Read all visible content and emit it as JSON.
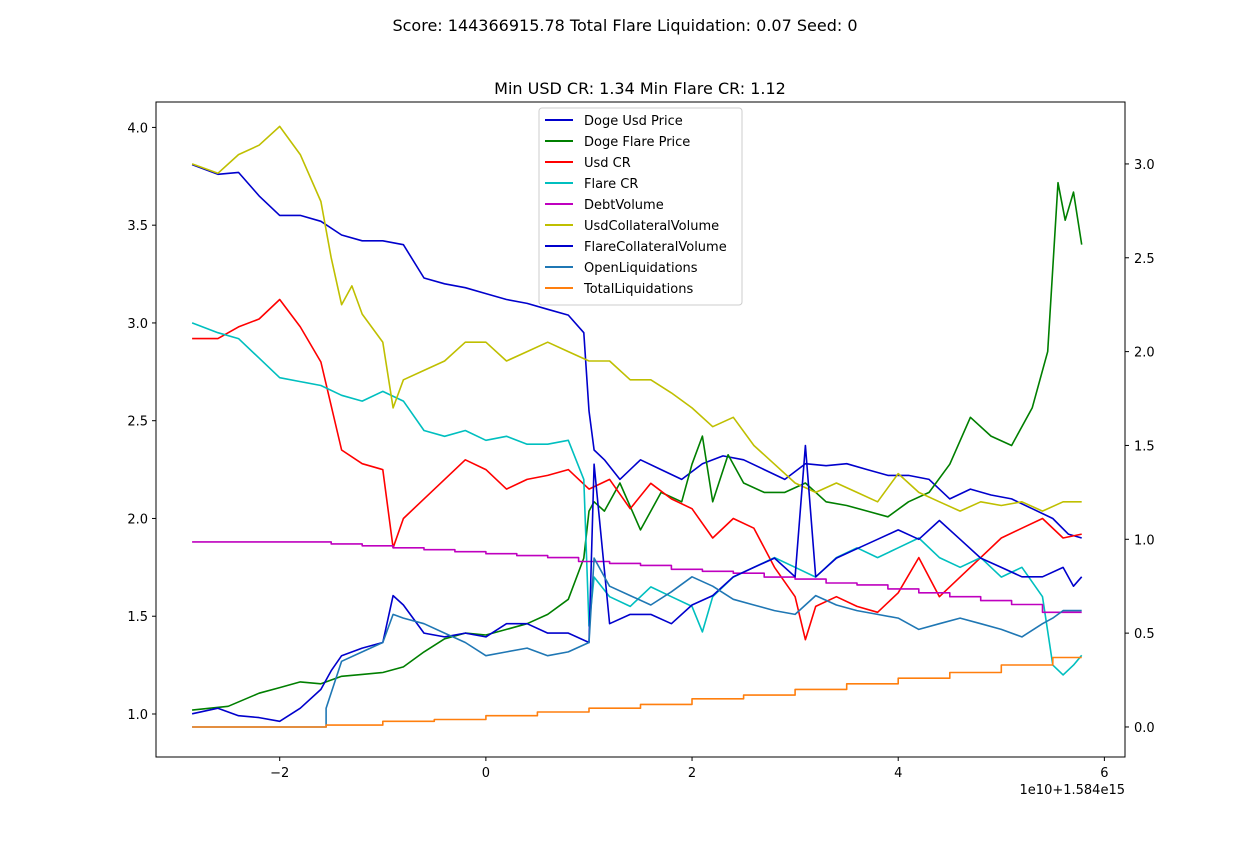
{
  "chart_data": {
    "type": "line",
    "suptitle": "Score: 144366915.78 Total Flare Liquidation: 0.07 Seed: 0",
    "title": "Min USD CR: 1.34 Min Flare CR: 1.12",
    "x_offset_label": "1e10+1.584e15",
    "x_ticks": [
      "−2",
      "0",
      "2",
      "4",
      "6"
    ],
    "x_tick_values": [
      -2,
      0,
      2,
      4,
      6
    ],
    "xlim": [
      -3.2,
      6.2
    ],
    "left_axis": {
      "ylim": [
        0.78,
        4.13
      ],
      "ticks": [
        "1.0",
        "1.5",
        "2.0",
        "2.5",
        "3.0",
        "3.5",
        "4.0"
      ],
      "tick_values": [
        1.0,
        1.5,
        2.0,
        2.5,
        3.0,
        3.5,
        4.0
      ]
    },
    "right_axis": {
      "ylim": [
        -0.16,
        3.33
      ],
      "ticks": [
        "0.0",
        "0.5",
        "1.0",
        "1.5",
        "2.0",
        "2.5",
        "3.0"
      ],
      "tick_values": [
        0.0,
        0.5,
        1.0,
        1.5,
        2.0,
        2.5,
        3.0
      ]
    },
    "legend_position": "upper-center",
    "grid": false,
    "series": [
      {
        "name": "Doge Usd Price",
        "color": "#0000cc",
        "axis": "left",
        "x": [
          -2.85,
          -2.6,
          -2.4,
          -2.2,
          -2.0,
          -1.8,
          -1.6,
          -1.4,
          -1.2,
          -1.0,
          -0.8,
          -0.6,
          -0.4,
          -0.2,
          0.0,
          0.2,
          0.4,
          0.6,
          0.8,
          0.95,
          1.0,
          1.05,
          1.15,
          1.3,
          1.5,
          1.7,
          1.9,
          2.1,
          2.3,
          2.5,
          2.7,
          2.9,
          3.1,
          3.3,
          3.5,
          3.7,
          3.9,
          4.1,
          4.3,
          4.5,
          4.7,
          4.9,
          5.1,
          5.3,
          5.5,
          5.65,
          5.78
        ],
        "y": [
          3.81,
          3.76,
          3.77,
          3.65,
          3.55,
          3.55,
          3.52,
          3.45,
          3.42,
          3.42,
          3.4,
          3.23,
          3.2,
          3.18,
          3.15,
          3.12,
          3.1,
          3.07,
          3.04,
          2.95,
          2.55,
          2.35,
          2.3,
          2.2,
          2.3,
          2.25,
          2.2,
          2.28,
          2.32,
          2.3,
          2.25,
          2.2,
          2.28,
          2.27,
          2.28,
          2.25,
          2.22,
          2.22,
          2.2,
          2.1,
          2.15,
          2.12,
          2.1,
          2.05,
          2.0,
          1.92,
          1.9
        ]
      },
      {
        "name": "Doge Flare Price",
        "color": "#007f00",
        "axis": "right",
        "x": [
          -2.85,
          -2.5,
          -2.2,
          -2.0,
          -1.8,
          -1.6,
          -1.4,
          -1.2,
          -1.0,
          -0.8,
          -0.6,
          -0.4,
          -0.2,
          0.0,
          0.2,
          0.4,
          0.6,
          0.8,
          0.95,
          1.0,
          1.05,
          1.15,
          1.3,
          1.5,
          1.7,
          1.9,
          2.0,
          2.1,
          2.2,
          2.35,
          2.5,
          2.7,
          2.9,
          3.1,
          3.3,
          3.5,
          3.7,
          3.9,
          4.1,
          4.3,
          4.5,
          4.7,
          4.9,
          5.1,
          5.3,
          5.45,
          5.55,
          5.62,
          5.7,
          5.78
        ],
        "y": [
          0.09,
          0.11,
          0.18,
          0.21,
          0.24,
          0.23,
          0.27,
          0.28,
          0.29,
          0.32,
          0.4,
          0.47,
          0.5,
          0.49,
          0.52,
          0.55,
          0.6,
          0.68,
          0.9,
          1.15,
          1.2,
          1.15,
          1.3,
          1.05,
          1.25,
          1.2,
          1.4,
          1.55,
          1.2,
          1.45,
          1.3,
          1.25,
          1.25,
          1.3,
          1.2,
          1.18,
          1.15,
          1.12,
          1.2,
          1.25,
          1.4,
          1.65,
          1.55,
          1.5,
          1.7,
          2.0,
          2.9,
          2.7,
          2.85,
          2.57
        ]
      },
      {
        "name": "Usd CR",
        "color": "#ff0000",
        "axis": "left",
        "x": [
          -2.85,
          -2.6,
          -2.4,
          -2.2,
          -2.0,
          -1.8,
          -1.6,
          -1.4,
          -1.2,
          -1.0,
          -0.9,
          -0.8,
          -0.6,
          -0.4,
          -0.2,
          0.0,
          0.2,
          0.4,
          0.6,
          0.8,
          1.0,
          1.2,
          1.4,
          1.6,
          1.8,
          2.0,
          2.2,
          2.4,
          2.6,
          2.8,
          3.0,
          3.1,
          3.2,
          3.4,
          3.6,
          3.8,
          4.0,
          4.2,
          4.4,
          4.6,
          4.8,
          5.0,
          5.2,
          5.4,
          5.6,
          5.78
        ],
        "y": [
          2.92,
          2.92,
          2.98,
          3.02,
          3.12,
          2.98,
          2.8,
          2.35,
          2.28,
          2.25,
          1.85,
          2.0,
          2.1,
          2.2,
          2.3,
          2.25,
          2.15,
          2.2,
          2.22,
          2.25,
          2.15,
          2.2,
          2.05,
          2.18,
          2.1,
          2.05,
          1.9,
          2.0,
          1.95,
          1.75,
          1.6,
          1.38,
          1.55,
          1.6,
          1.55,
          1.52,
          1.62,
          1.8,
          1.6,
          1.7,
          1.8,
          1.9,
          1.95,
          2.0,
          1.9,
          1.92
        ]
      },
      {
        "name": "Flare CR",
        "color": "#00bfbf",
        "axis": "left",
        "x": [
          -2.85,
          -2.6,
          -2.4,
          -2.2,
          -2.0,
          -1.8,
          -1.6,
          -1.4,
          -1.2,
          -1.0,
          -0.8,
          -0.6,
          -0.4,
          -0.2,
          0.0,
          0.2,
          0.4,
          0.6,
          0.8,
          0.95,
          1.0,
          1.05,
          1.2,
          1.4,
          1.6,
          1.8,
          2.0,
          2.1,
          2.2,
          2.4,
          2.6,
          2.8,
          3.0,
          3.2,
          3.4,
          3.6,
          3.8,
          4.0,
          4.2,
          4.4,
          4.6,
          4.8,
          5.0,
          5.2,
          5.4,
          5.5,
          5.6,
          5.7,
          5.78
        ],
        "y": [
          3.0,
          2.95,
          2.92,
          2.82,
          2.72,
          2.7,
          2.68,
          2.63,
          2.6,
          2.65,
          2.6,
          2.45,
          2.42,
          2.45,
          2.4,
          2.42,
          2.38,
          2.38,
          2.4,
          2.2,
          1.45,
          1.7,
          1.6,
          1.55,
          1.65,
          1.6,
          1.55,
          1.42,
          1.6,
          1.7,
          1.75,
          1.8,
          1.75,
          1.7,
          1.8,
          1.85,
          1.8,
          1.85,
          1.9,
          1.8,
          1.75,
          1.8,
          1.7,
          1.75,
          1.6,
          1.25,
          1.2,
          1.25,
          1.3
        ]
      },
      {
        "name": "DebtVolume",
        "color": "#bf00bf",
        "axis": "left",
        "x": [
          -2.85,
          -1.5,
          -1.5,
          -1.2,
          -1.2,
          -0.9,
          -0.9,
          -0.6,
          -0.6,
          -0.3,
          -0.3,
          0.0,
          0.0,
          0.3,
          0.3,
          0.6,
          0.6,
          0.9,
          0.9,
          1.2,
          1.2,
          1.5,
          1.5,
          1.8,
          1.8,
          2.1,
          2.1,
          2.4,
          2.4,
          2.7,
          2.7,
          3.0,
          3.0,
          3.3,
          3.3,
          3.6,
          3.6,
          3.9,
          3.9,
          4.2,
          4.2,
          4.5,
          4.5,
          4.8,
          4.8,
          5.1,
          5.1,
          5.4,
          5.4,
          5.78
        ],
        "y": [
          1.88,
          1.88,
          1.87,
          1.87,
          1.86,
          1.86,
          1.85,
          1.85,
          1.84,
          1.84,
          1.83,
          1.83,
          1.82,
          1.82,
          1.81,
          1.81,
          1.8,
          1.8,
          1.78,
          1.78,
          1.77,
          1.77,
          1.76,
          1.76,
          1.74,
          1.74,
          1.73,
          1.73,
          1.72,
          1.72,
          1.7,
          1.7,
          1.69,
          1.69,
          1.67,
          1.67,
          1.66,
          1.66,
          1.64,
          1.64,
          1.62,
          1.62,
          1.6,
          1.6,
          1.58,
          1.58,
          1.56,
          1.56,
          1.52,
          1.52
        ]
      },
      {
        "name": "UsdCollateralVolume",
        "color": "#bfbf00",
        "axis": "right",
        "x": [
          -2.85,
          -2.6,
          -2.4,
          -2.2,
          -2.0,
          -1.8,
          -1.6,
          -1.5,
          -1.4,
          -1.3,
          -1.2,
          -1.0,
          -0.9,
          -0.8,
          -0.6,
          -0.4,
          -0.2,
          0.0,
          0.2,
          0.4,
          0.6,
          0.8,
          1.0,
          1.2,
          1.4,
          1.6,
          1.8,
          2.0,
          2.2,
          2.4,
          2.6,
          2.8,
          3.0,
          3.2,
          3.4,
          3.6,
          3.8,
          4.0,
          4.2,
          4.4,
          4.6,
          4.8,
          5.0,
          5.2,
          5.4,
          5.6,
          5.78
        ],
        "y": [
          3.0,
          2.95,
          3.05,
          3.1,
          3.2,
          3.05,
          2.8,
          2.5,
          2.25,
          2.35,
          2.2,
          2.05,
          1.7,
          1.85,
          1.9,
          1.95,
          2.05,
          2.05,
          1.95,
          2.0,
          2.05,
          2.0,
          1.95,
          1.95,
          1.85,
          1.85,
          1.78,
          1.7,
          1.6,
          1.65,
          1.5,
          1.4,
          1.3,
          1.25,
          1.3,
          1.25,
          1.2,
          1.35,
          1.25,
          1.2,
          1.15,
          1.2,
          1.18,
          1.2,
          1.15,
          1.2,
          1.2
        ]
      },
      {
        "name": "FlareCollateralVolume",
        "color": "#0000cc",
        "axis": "right",
        "x": [
          -2.85,
          -2.6,
          -2.4,
          -2.2,
          -2.0,
          -1.8,
          -1.6,
          -1.5,
          -1.4,
          -1.2,
          -1.0,
          -0.9,
          -0.8,
          -0.6,
          -0.4,
          -0.2,
          0.0,
          0.2,
          0.4,
          0.6,
          0.8,
          1.0,
          1.05,
          1.2,
          1.4,
          1.6,
          1.8,
          2.0,
          2.2,
          2.4,
          2.6,
          2.8,
          3.0,
          3.1,
          3.2,
          3.4,
          3.6,
          3.8,
          4.0,
          4.2,
          4.4,
          4.6,
          4.8,
          5.0,
          5.2,
          5.4,
          5.6,
          5.7,
          5.78
        ],
        "y": [
          0.07,
          0.1,
          0.06,
          0.05,
          0.03,
          0.1,
          0.2,
          0.3,
          0.38,
          0.42,
          0.45,
          0.7,
          0.65,
          0.5,
          0.48,
          0.5,
          0.48,
          0.55,
          0.55,
          0.5,
          0.5,
          0.45,
          1.4,
          0.55,
          0.6,
          0.6,
          0.55,
          0.65,
          0.7,
          0.8,
          0.85,
          0.9,
          0.8,
          1.5,
          0.8,
          0.9,
          0.95,
          1.0,
          1.05,
          1.0,
          1.1,
          1.0,
          0.9,
          0.85,
          0.8,
          0.8,
          0.85,
          0.75,
          0.8
        ]
      },
      {
        "name": "OpenLiquidations",
        "color": "#1f77b4",
        "axis": "right",
        "x": [
          -2.85,
          -1.55,
          -1.55,
          -1.4,
          -1.2,
          -1.0,
          -0.9,
          -0.8,
          -0.6,
          -0.4,
          -0.2,
          0.0,
          0.2,
          0.4,
          0.6,
          0.8,
          1.0,
          1.05,
          1.2,
          1.4,
          1.6,
          1.8,
          2.0,
          2.2,
          2.4,
          2.6,
          2.8,
          3.0,
          3.2,
          3.4,
          3.6,
          3.8,
          4.0,
          4.2,
          4.4,
          4.6,
          4.8,
          5.0,
          5.2,
          5.4,
          5.5,
          5.6,
          5.78
        ],
        "y": [
          0.0,
          0.0,
          0.1,
          0.35,
          0.4,
          0.45,
          0.6,
          0.58,
          0.55,
          0.5,
          0.45,
          0.38,
          0.4,
          0.42,
          0.38,
          0.4,
          0.45,
          0.9,
          0.75,
          0.7,
          0.65,
          0.72,
          0.8,
          0.75,
          0.68,
          0.65,
          0.62,
          0.6,
          0.7,
          0.65,
          0.62,
          0.6,
          0.58,
          0.52,
          0.55,
          0.58,
          0.55,
          0.52,
          0.48,
          0.55,
          0.58,
          0.62,
          0.62
        ]
      },
      {
        "name": "TotalLiquidations",
        "color": "#ff7f0e",
        "axis": "right",
        "x": [
          -2.85,
          -1.55,
          -1.55,
          -1.0,
          -1.0,
          -0.5,
          -0.5,
          0.0,
          0.0,
          0.5,
          0.5,
          1.0,
          1.0,
          1.5,
          1.5,
          2.0,
          2.0,
          2.5,
          2.5,
          3.0,
          3.0,
          3.5,
          3.5,
          4.0,
          4.0,
          4.5,
          4.5,
          5.0,
          5.0,
          5.5,
          5.5,
          5.78
        ],
        "y": [
          0.0,
          0.0,
          0.01,
          0.01,
          0.03,
          0.03,
          0.04,
          0.04,
          0.06,
          0.06,
          0.08,
          0.08,
          0.1,
          0.1,
          0.12,
          0.12,
          0.15,
          0.15,
          0.17,
          0.17,
          0.2,
          0.2,
          0.23,
          0.23,
          0.26,
          0.26,
          0.29,
          0.29,
          0.33,
          0.33,
          0.37,
          0.37
        ]
      }
    ]
  }
}
